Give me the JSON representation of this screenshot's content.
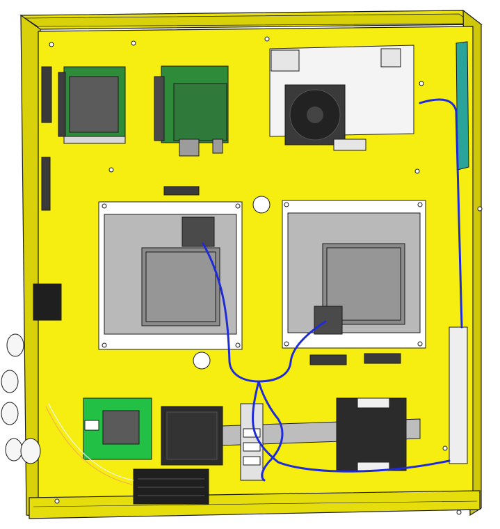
{
  "scene": {
    "description_visible_text": [],
    "colors": {
      "enclosure": "#f5ee10",
      "enclosure_edge": "#c9c200",
      "enclosure_dark": "#a9a200",
      "outline": "#1a1a1a",
      "cable_blue": "#1f2bd6",
      "pcb_green": "#2e8b3a",
      "pcb_bright_green": "#23c046",
      "heatsink_gray": "#b9b9b9",
      "heatsink_dark": "#8b8b8b",
      "white_device": "#f4f4f4",
      "teal_rail": "#2aa39a",
      "black_block": "#2b2b2b",
      "din_rail": "#bdbdbd"
    },
    "icons": [
      "screw-icon",
      "fan-icon",
      "connector-icon"
    ]
  }
}
